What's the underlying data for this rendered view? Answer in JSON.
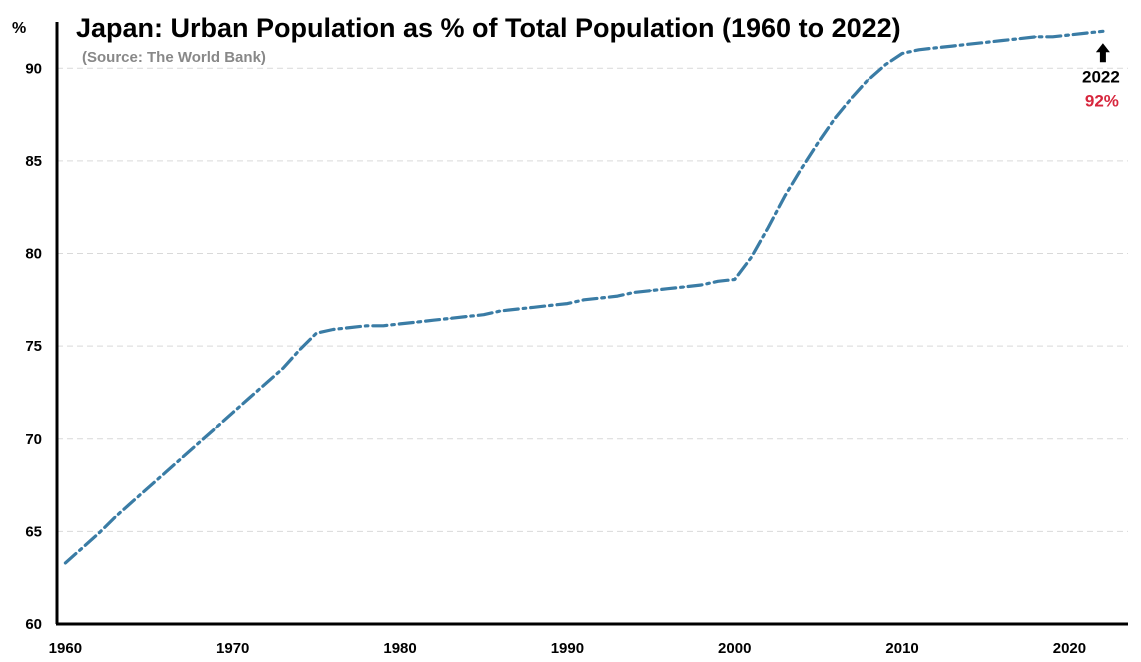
{
  "chart_data": {
    "type": "line",
    "title": "Japan: Urban Population as % of Total Population (1960 to 2022)",
    "subtitle": "(Source: The World Bank)",
    "ylabel": "%",
    "xlabel": "",
    "xlim": [
      1959.5,
      2023.5
    ],
    "ylim": [
      60,
      92.5
    ],
    "x_ticks": [
      1960,
      1970,
      1980,
      1990,
      2000,
      2010,
      2020
    ],
    "y_ticks": [
      60,
      65,
      70,
      75,
      80,
      85,
      90
    ],
    "grid": "horizontal dashed",
    "line_color": "#3a7ca5",
    "series": [
      {
        "x": [
          1960,
          1961,
          1962,
          1963,
          1964,
          1965,
          1966,
          1967,
          1968,
          1969,
          1970,
          1971,
          1972,
          1973,
          1974,
          1975,
          1976,
          1977,
          1978,
          1979,
          1980,
          1981,
          1982,
          1983,
          1984,
          1985,
          1986,
          1987,
          1988,
          1989,
          1990,
          1991,
          1992,
          1993,
          1994,
          1995,
          1996,
          1997,
          1998,
          1999,
          2000,
          2001,
          2002,
          2003,
          2004,
          2005,
          2006,
          2007,
          2008,
          2009,
          2010,
          2011,
          2012,
          2013,
          2014,
          2015,
          2016,
          2017,
          2018,
          2019,
          2020,
          2021,
          2022
        ],
        "values": [
          63.3,
          64.1,
          64.9,
          65.8,
          66.6,
          67.4,
          68.2,
          69.0,
          69.8,
          70.6,
          71.4,
          72.2,
          73.0,
          73.8,
          74.8,
          75.7,
          75.9,
          76.0,
          76.1,
          76.1,
          76.2,
          76.3,
          76.4,
          76.5,
          76.6,
          76.7,
          76.9,
          77.0,
          77.1,
          77.2,
          77.3,
          77.5,
          77.6,
          77.7,
          77.9,
          78.0,
          78.1,
          78.2,
          78.3,
          78.5,
          78.6,
          79.8,
          81.4,
          83.1,
          84.6,
          86.0,
          87.3,
          88.4,
          89.4,
          90.2,
          90.8,
          91.0,
          91.1,
          91.2,
          91.3,
          91.4,
          91.5,
          91.6,
          91.7,
          91.7,
          91.8,
          91.9,
          92.0
        ]
      }
    ],
    "annotation": {
      "year_label": "2022",
      "value_label": "92%"
    }
  }
}
